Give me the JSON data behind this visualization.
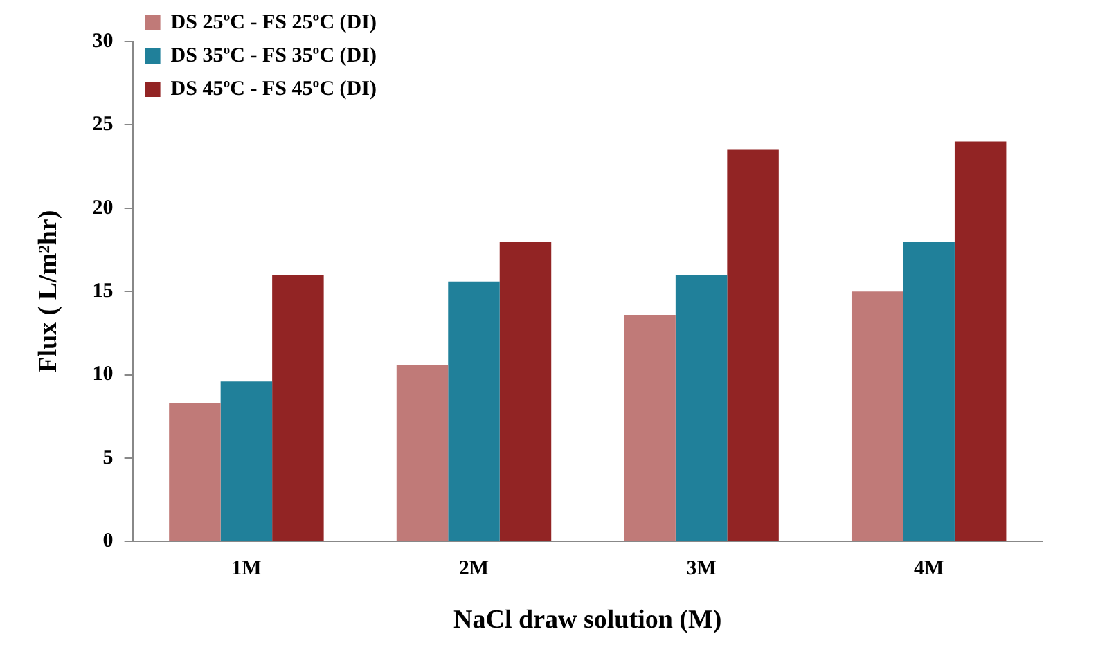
{
  "chart_data": {
    "type": "bar",
    "xlabel": "NaCl draw solution (M)",
    "ylabel": "Flux ( L/m²hr)",
    "categories": [
      "1M",
      "2M",
      "3M",
      "4M"
    ],
    "series": [
      {
        "name": "DS 25ºC - FS 25ºC (DI)",
        "color": "#c07a78",
        "values": [
          8.3,
          10.6,
          13.6,
          15.0
        ]
      },
      {
        "name": "DS 35ºC - FS 35ºC (DI)",
        "color": "#20809a",
        "values": [
          9.6,
          15.6,
          16.0,
          18.0
        ]
      },
      {
        "name": "DS 45ºC - FS 45ºC (DI)",
        "color": "#922424",
        "values": [
          16.0,
          18.0,
          23.5,
          24.0
        ]
      }
    ],
    "ylim": [
      0,
      30
    ],
    "yticks": [
      0,
      5,
      10,
      15,
      20,
      25,
      30
    ],
    "grid": false,
    "legend": "top left"
  }
}
